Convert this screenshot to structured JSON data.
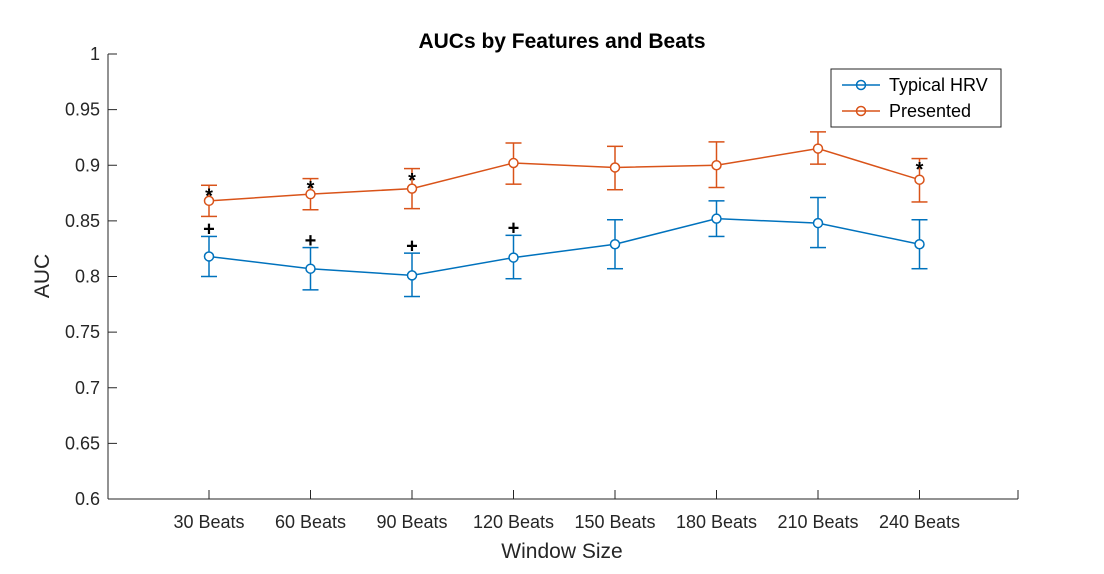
{
  "chart_data": {
    "type": "line",
    "title": "AUCs by Features and Beats",
    "xlabel": "Window Size",
    "ylabel": "AUC",
    "ylim": [
      0.6,
      1
    ],
    "yticks": [
      "0.6",
      "0.65",
      "0.7",
      "0.75",
      "0.8",
      "0.85",
      "0.9",
      "0.95",
      "1"
    ],
    "categories": [
      "30 Beats",
      "60 Beats",
      "90 Beats",
      "120 Beats",
      "150 Beats",
      "180 Beats",
      "210 Beats",
      "240 Beats"
    ],
    "grid": false,
    "legend_position": "top-right",
    "series": [
      {
        "name": "Typical HRV",
        "color": "#0072BD",
        "values": [
          0.818,
          0.807,
          0.801,
          0.817,
          0.829,
          0.852,
          0.848,
          0.829
        ],
        "err_lower": [
          0.8,
          0.788,
          0.782,
          0.798,
          0.807,
          0.836,
          0.826,
          0.807
        ],
        "err_upper": [
          0.836,
          0.826,
          0.821,
          0.837,
          0.851,
          0.868,
          0.871,
          0.851
        ]
      },
      {
        "name": "Presented",
        "color": "#D95319",
        "values": [
          0.868,
          0.874,
          0.879,
          0.902,
          0.898,
          0.9,
          0.915,
          0.887
        ],
        "err_lower": [
          0.854,
          0.86,
          0.861,
          0.883,
          0.878,
          0.88,
          0.901,
          0.867
        ],
        "err_upper": [
          0.882,
          0.888,
          0.897,
          0.92,
          0.917,
          0.921,
          0.93,
          0.906
        ]
      }
    ],
    "annotations": [
      {
        "text": "*",
        "category_index": 0,
        "y": 0.879
      },
      {
        "text": "*",
        "category_index": 1,
        "y": 0.886
      },
      {
        "text": "*",
        "category_index": 2,
        "y": 0.893
      },
      {
        "text": "*",
        "category_index": 7,
        "y": 0.903
      },
      {
        "text": "+",
        "category_index": 0,
        "y": 0.843
      },
      {
        "text": "+",
        "category_index": 1,
        "y": 0.833
      },
      {
        "text": "+",
        "category_index": 2,
        "y": 0.828
      },
      {
        "text": "+",
        "category_index": 3,
        "y": 0.844
      }
    ]
  }
}
